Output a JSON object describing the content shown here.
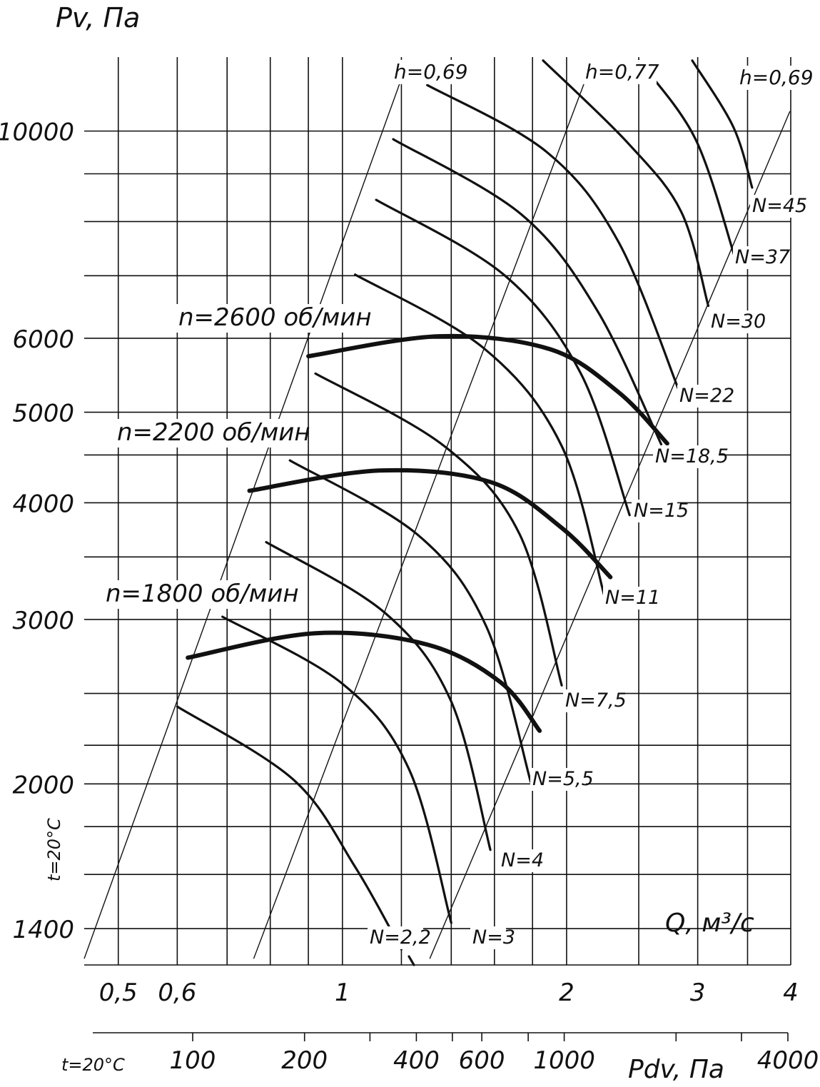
{
  "chart_data": {
    "type": "line",
    "title": "",
    "ylabel": "Pv, Па",
    "xlabel": "Q, м³/с",
    "x2label": "Pdv, Па",
    "temperature_note": "t=20°C",
    "x_scale": "log",
    "y_scale": "log",
    "xlim": [
      0.45,
      4.0
    ],
    "ylim": [
      1280,
      12000
    ],
    "y_ticks": [
      {
        "value": 1400,
        "label": "1400"
      },
      {
        "value": 2000,
        "label": "2000"
      },
      {
        "value": 3000,
        "label": "3000"
      },
      {
        "value": 4000,
        "label": "4000"
      },
      {
        "value": 5000,
        "label": "5000"
      },
      {
        "value": 6000,
        "label": "6000"
      },
      {
        "value": 10000,
        "label": "10000"
      }
    ],
    "y_minor_ticks": [
      1600,
      1800,
      2200,
      2500,
      3500,
      4500,
      7000,
      8000,
      9000
    ],
    "x_ticks": [
      {
        "value": 0.5,
        "label": "0,5"
      },
      {
        "value": 0.6,
        "label": "0,6"
      },
      {
        "value": 1,
        "label": "1"
      },
      {
        "value": 2,
        "label": "2"
      },
      {
        "value": 3,
        "label": "3"
      },
      {
        "value": 4,
        "label": "4"
      }
    ],
    "x_minor_ticks": [
      0.7,
      0.8,
      0.9,
      1.2,
      1.4,
      1.6,
      1.8,
      2.5,
      3.5
    ],
    "x2_ticks": [
      {
        "value": 100,
        "label": "100"
      },
      {
        "value": 200,
        "label": "200"
      },
      {
        "value": 400,
        "label": "400"
      },
      {
        "value": 600,
        "label": "600"
      },
      {
        "value": 1000,
        "label": "1000"
      },
      {
        "value": 4000,
        "label": "4000"
      }
    ],
    "x2_minor_ticks": [
      300,
      500,
      800,
      2000,
      3000
    ],
    "efficiency_lines": [
      {
        "label": "h=0,69",
        "points": [
          [
            0.45,
            1300
          ],
          [
            1.22,
            11800
          ]
        ]
      },
      {
        "label": "h=0,77",
        "points": [
          [
            0.76,
            1300
          ],
          [
            2.16,
            11800
          ]
        ]
      },
      {
        "label": "h=0,69",
        "points": [
          [
            1.31,
            1300
          ],
          [
            3.99,
            10500
          ]
        ]
      }
    ],
    "speed_curves": [
      {
        "label": "n=1800 об/мин",
        "points": [
          [
            0.62,
            2730
          ],
          [
            0.92,
            2900
          ],
          [
            1.3,
            2820
          ],
          [
            1.63,
            2570
          ],
          [
            1.84,
            2280
          ]
        ]
      },
      {
        "label": "n=2200 об/мин",
        "points": [
          [
            0.75,
            4120
          ],
          [
            1.12,
            4330
          ],
          [
            1.58,
            4210
          ],
          [
            1.97,
            3760
          ],
          [
            2.29,
            3330
          ]
        ]
      },
      {
        "label": "n=2600 об/мин",
        "points": [
          [
            0.9,
            5740
          ],
          [
            1.35,
            6030
          ],
          [
            1.9,
            5840
          ],
          [
            2.35,
            5250
          ],
          [
            2.73,
            4630
          ]
        ]
      }
    ],
    "power_curves": [
      {
        "label": "N=2,2",
        "points": [
          [
            0.6,
            2420
          ],
          [
            0.86,
            2020
          ],
          [
            1.04,
            1630
          ],
          [
            1.2,
            1330
          ]
        ]
      },
      {
        "label": "N=3",
        "points": [
          [
            0.69,
            3020
          ],
          [
            1.0,
            2560
          ],
          [
            1.23,
            2070
          ],
          [
            1.4,
            1420
          ]
        ]
      },
      {
        "label": "N=4",
        "points": [
          [
            0.79,
            3630
          ],
          [
            1.14,
            3050
          ],
          [
            1.4,
            2450
          ],
          [
            1.58,
            1700
          ]
        ]
      },
      {
        "label": "N=5,5",
        "points": [
          [
            0.85,
            4440
          ],
          [
            1.26,
            3700
          ],
          [
            1.56,
            2950
          ],
          [
            1.79,
            2010
          ]
        ]
      },
      {
        "label": "N=7,5",
        "points": [
          [
            0.92,
            5500
          ],
          [
            1.37,
            4600
          ],
          [
            1.73,
            3700
          ],
          [
            1.97,
            2550
          ]
        ]
      },
      {
        "label": "N=11",
        "points": [
          [
            1.04,
            7020
          ],
          [
            1.55,
            5850
          ],
          [
            1.97,
            4600
          ],
          [
            2.25,
            3170
          ]
        ]
      },
      {
        "label": "N=15",
        "points": [
          [
            1.11,
            8440
          ],
          [
            1.65,
            7010
          ],
          [
            2.09,
            5500
          ],
          [
            2.43,
            3880
          ]
        ]
      },
      {
        "label": "N=18,5",
        "points": [
          [
            1.17,
            9800
          ],
          [
            1.74,
            8140
          ],
          [
            2.2,
            6420
          ],
          [
            2.68,
            4620
          ]
        ]
      },
      {
        "label": "N=22",
        "points": [
          [
            1.3,
            11200
          ],
          [
            1.88,
            9500
          ],
          [
            2.35,
            7600
          ],
          [
            2.84,
            5240
          ]
        ]
      },
      {
        "label": "N=30",
        "points": [
          [
            1.86,
            11900
          ],
          [
            2.42,
            9700
          ],
          [
            2.85,
            8200
          ],
          [
            3.1,
            6500
          ]
        ]
      },
      {
        "label": "N=37",
        "points": [
          [
            2.5,
            11900
          ],
          [
            2.98,
            9800
          ],
          [
            3.37,
            7300
          ]
        ]
      },
      {
        "label": "N=45",
        "points": [
          [
            2.95,
            11900
          ],
          [
            3.35,
            10100
          ],
          [
            3.55,
            8700
          ]
        ]
      }
    ]
  }
}
